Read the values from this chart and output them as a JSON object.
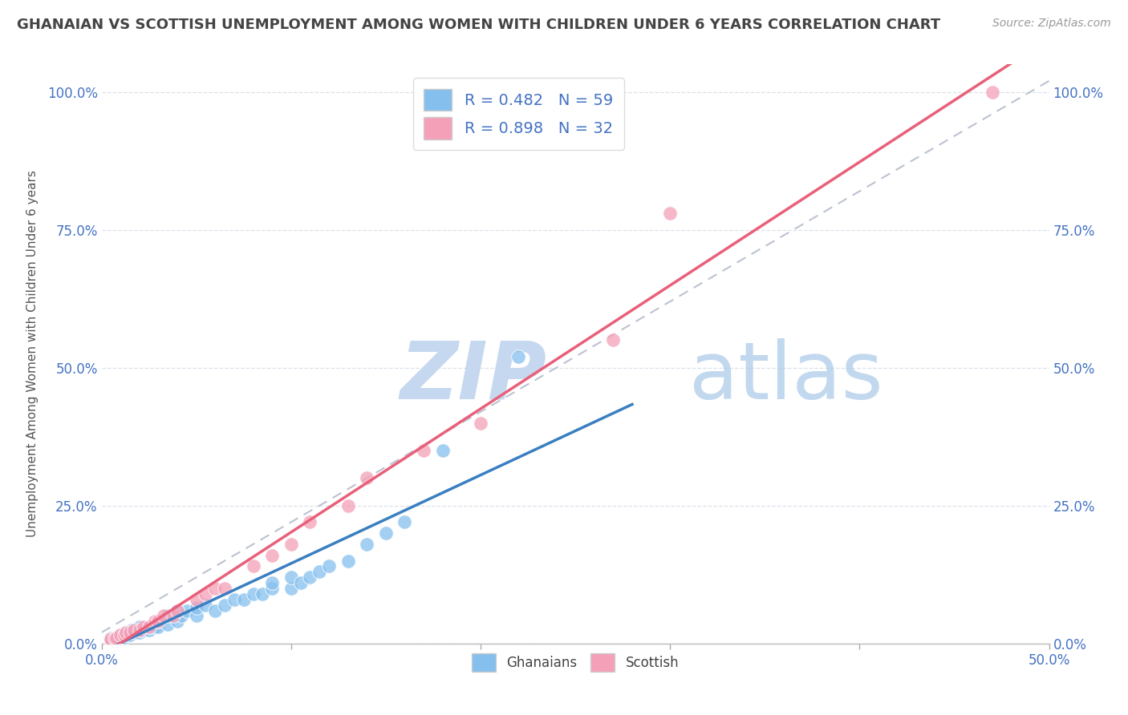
{
  "title": "GHANAIAN VS SCOTTISH UNEMPLOYMENT AMONG WOMEN WITH CHILDREN UNDER 6 YEARS CORRELATION CHART",
  "source": "Source: ZipAtlas.com",
  "xlim": [
    0.0,
    0.5
  ],
  "ylim": [
    0.0,
    1.05
  ],
  "ghanaian_R": 0.482,
  "ghanaian_N": 59,
  "scottish_R": 0.898,
  "scottish_N": 32,
  "watermark_zip": "ZIP",
  "watermark_atlas": "atlas",
  "ghanaian_color": "#85bfee",
  "scottish_color": "#f4a0b8",
  "ghanaian_line_color": "#3a7fc1",
  "scottish_line_color": "#e8607a",
  "diagonal_color": "#b0b8c8",
  "background_color": "#ffffff",
  "grid_color": "#d8dde8",
  "title_color": "#444444",
  "tick_color": "#4472c4",
  "ylabel_color": "#555555",
  "legend_text_color": "#4472c4",
  "ghanaian_x": [
    0.005,
    0.005,
    0.005,
    0.005,
    0.005,
    0.005,
    0.007,
    0.007,
    0.008,
    0.008,
    0.01,
    0.01,
    0.01,
    0.012,
    0.012,
    0.013,
    0.014,
    0.015,
    0.015,
    0.016,
    0.018,
    0.02,
    0.02,
    0.02,
    0.022,
    0.025,
    0.025,
    0.028,
    0.03,
    0.03,
    0.035,
    0.035,
    0.04,
    0.04,
    0.042,
    0.045,
    0.05,
    0.05,
    0.055,
    0.06,
    0.065,
    0.07,
    0.075,
    0.08,
    0.085,
    0.09,
    0.09,
    0.1,
    0.1,
    0.105,
    0.11,
    0.115,
    0.12,
    0.13,
    0.14,
    0.15,
    0.16,
    0.18,
    0.22
  ],
  "ghanaian_y": [
    0.005,
    0.005,
    0.005,
    0.008,
    0.01,
    0.01,
    0.008,
    0.01,
    0.01,
    0.012,
    0.01,
    0.012,
    0.015,
    0.012,
    0.015,
    0.02,
    0.015,
    0.015,
    0.02,
    0.025,
    0.02,
    0.02,
    0.025,
    0.03,
    0.025,
    0.025,
    0.03,
    0.03,
    0.03,
    0.04,
    0.035,
    0.05,
    0.04,
    0.06,
    0.05,
    0.06,
    0.05,
    0.065,
    0.07,
    0.06,
    0.07,
    0.08,
    0.08,
    0.09,
    0.09,
    0.1,
    0.11,
    0.1,
    0.12,
    0.11,
    0.12,
    0.13,
    0.14,
    0.15,
    0.18,
    0.2,
    0.22,
    0.35,
    0.52
  ],
  "scottish_x": [
    0.005,
    0.005,
    0.007,
    0.008,
    0.01,
    0.012,
    0.013,
    0.015,
    0.017,
    0.02,
    0.022,
    0.025,
    0.028,
    0.03,
    0.033,
    0.038,
    0.04,
    0.05,
    0.055,
    0.06,
    0.065,
    0.08,
    0.09,
    0.1,
    0.11,
    0.13,
    0.14,
    0.17,
    0.2,
    0.27,
    0.3,
    0.47
  ],
  "scottish_y": [
    0.005,
    0.008,
    0.01,
    0.01,
    0.015,
    0.015,
    0.02,
    0.02,
    0.025,
    0.025,
    0.03,
    0.03,
    0.04,
    0.04,
    0.05,
    0.05,
    0.06,
    0.08,
    0.09,
    0.1,
    0.1,
    0.14,
    0.16,
    0.18,
    0.22,
    0.25,
    0.3,
    0.35,
    0.4,
    0.55,
    0.78,
    1.0
  ]
}
